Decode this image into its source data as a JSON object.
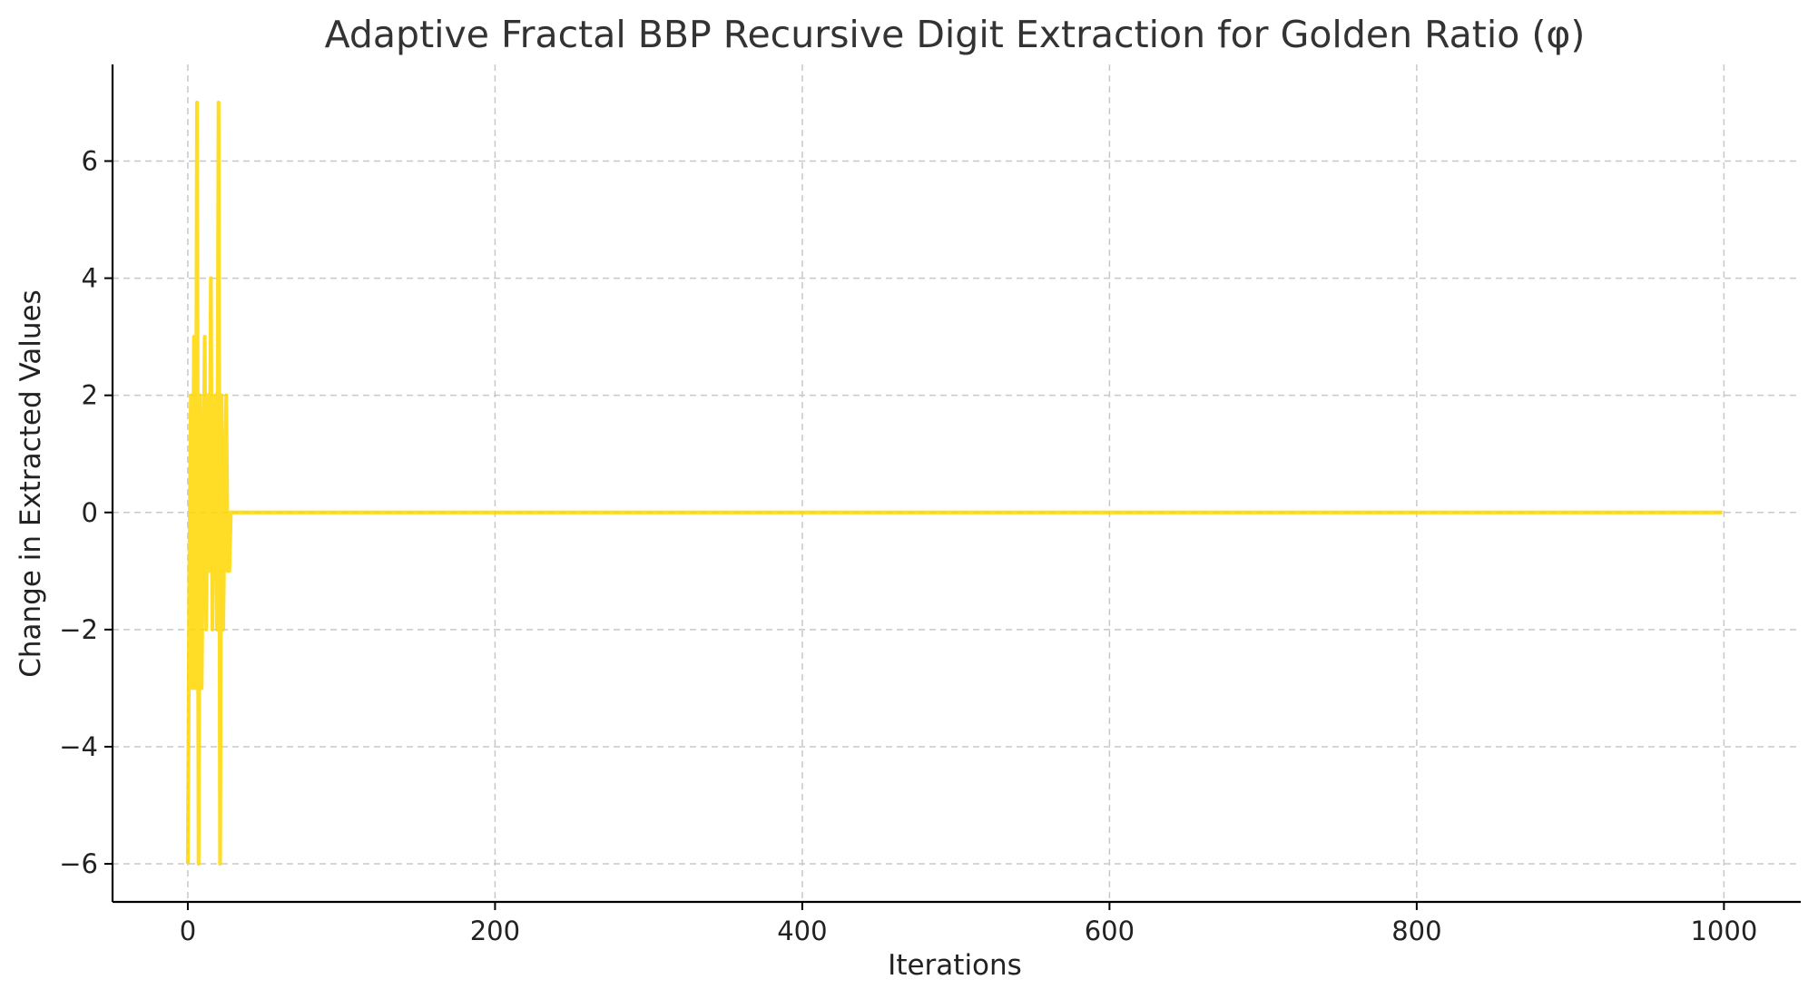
{
  "chart_data": {
    "type": "line",
    "title": "Adaptive Fractal BBP Recursive Digit Extraction for Golden Ratio (φ)",
    "xlabel": "Iterations",
    "ylabel": "Change in Extracted Values",
    "xlim": [
      -49,
      1050
    ],
    "ylim": [
      -6.65,
      7.65
    ],
    "x_ticks": [
      0,
      200,
      400,
      600,
      800,
      1000
    ],
    "y_ticks": [
      -6,
      -4,
      -2,
      0,
      2,
      4,
      6
    ],
    "x_tick_labels": [
      "0",
      "200",
      "400",
      "600",
      "800",
      "1000"
    ],
    "y_tick_labels": [
      "−6",
      "−4",
      "−2",
      "0",
      "2",
      "4",
      "6"
    ],
    "grid": true,
    "series": [
      {
        "color": "#FFD700",
        "x": [
          0,
          1,
          2,
          3,
          4,
          5,
          6,
          7,
          8,
          9,
          10,
          11,
          12,
          13,
          14,
          15,
          16,
          17,
          18,
          19,
          20,
          21,
          22,
          23,
          24,
          25,
          26,
          27,
          28,
          29,
          30,
          31,
          32,
          999
        ],
        "values": [
          -6,
          -1,
          2,
          -3,
          3,
          -3,
          7,
          -6,
          2,
          -3,
          0,
          3,
          -2,
          2,
          -1,
          4,
          -2,
          1,
          2,
          -2,
          7,
          -6,
          2,
          -2,
          0,
          2,
          -1,
          -1,
          0,
          0,
          0,
          0,
          0,
          0
        ]
      }
    ]
  }
}
